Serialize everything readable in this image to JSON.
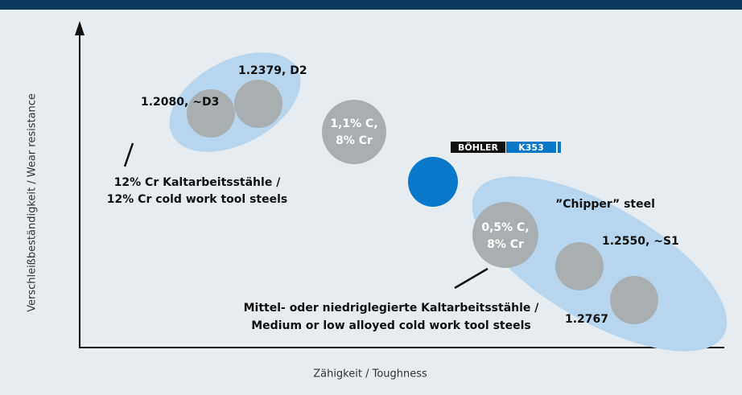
{
  "axes": {
    "y_label": "Verschleißbeständigkeit / Wear resistance",
    "x_label": "Zähigkeit / Toughness"
  },
  "groups": [
    {
      "label_lines": [
        "12% Cr Kaltarbeitsstähle /",
        "12% Cr cold work tool steels"
      ]
    },
    {
      "label_lines": [
        "Mittel- oder niedriglegierte Kaltarbeitsstähle /",
        "Medium or low alloyed cold work tool steels"
      ],
      "note": "”Chipper” steel"
    }
  ],
  "circles": [
    {
      "label": "1.2080, ~D3"
    },
    {
      "label": "1.2379, D2"
    },
    {
      "inner_lines": [
        "1,1% C,",
        "8% Cr"
      ]
    },
    {
      "inner_lines": [
        "0,5% C,",
        "8% Cr"
      ]
    },
    {
      "label": "1.2550, ~S1"
    },
    {
      "label": "1.2767"
    }
  ],
  "logo": {
    "brand": "BÖHLER",
    "grade": "K353"
  }
}
